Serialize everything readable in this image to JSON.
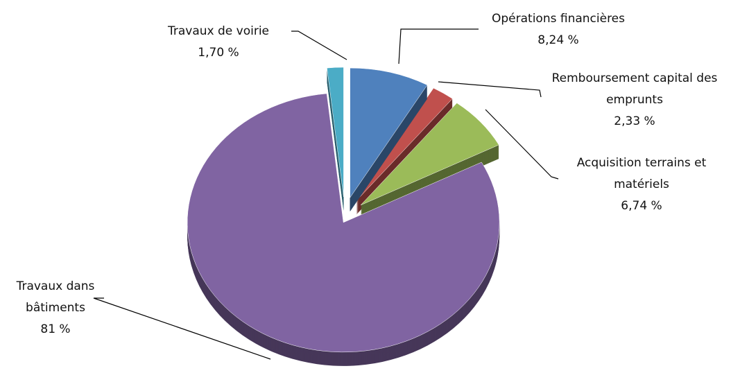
{
  "chart_data": {
    "type": "pie",
    "categories": [
      "Opérations financières",
      "Remboursement capital des emprunts",
      "Acquisition terrains et matériels",
      "Travaux dans bâtiments",
      "Travaux de voirie"
    ],
    "values": [
      8.24,
      2.33,
      6.74,
      81,
      1.7
    ],
    "value_labels": [
      "8,24 %",
      "2,33 %",
      "6,74 %",
      "81 %",
      "1,70 %"
    ],
    "colors": [
      "#4f81bd",
      "#c0504d",
      "#9bbb59",
      "#8064a2",
      "#4bacc6"
    ]
  }
}
